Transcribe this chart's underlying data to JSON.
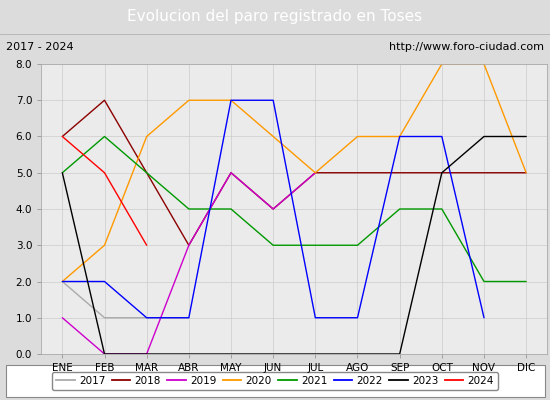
{
  "title": "Evolucion del paro registrado en Toses",
  "subtitle_left": "2017 - 2024",
  "subtitle_right": "http://www.foro-ciudad.com",
  "months": [
    "ENE",
    "FEB",
    "MAR",
    "ABR",
    "MAY",
    "JUN",
    "JUL",
    "AGO",
    "SEP",
    "OCT",
    "NOV",
    "DIC"
  ],
  "series": {
    "2017": [
      2,
      1,
      1,
      1,
      null,
      null,
      null,
      null,
      null,
      null,
      null,
      null
    ],
    "2018": [
      6,
      7,
      5,
      3,
      5,
      4,
      5,
      5,
      5,
      5,
      5,
      5
    ],
    "2019": [
      1,
      0,
      0,
      3,
      5,
      4,
      5,
      null,
      null,
      null,
      null,
      null
    ],
    "2020": [
      2,
      3,
      6,
      7,
      7,
      6,
      5,
      6,
      6,
      8,
      8,
      5
    ],
    "2021": [
      5,
      6,
      5,
      4,
      4,
      3,
      3,
      3,
      4,
      4,
      2,
      2
    ],
    "2022": [
      2,
      2,
      1,
      1,
      7,
      7,
      1,
      1,
      6,
      6,
      1,
      null
    ],
    "2023": [
      5,
      0,
      0,
      0,
      0,
      0,
      0,
      0,
      0,
      5,
      6,
      6
    ],
    "2024": [
      6,
      5,
      3,
      null,
      null,
      null,
      null,
      null,
      null,
      null,
      null,
      null
    ]
  },
  "colors": {
    "2017": "#aaaaaa",
    "2018": "#8b0000",
    "2019": "#cc00cc",
    "2020": "#ff9900",
    "2021": "#009900",
    "2022": "#0000ff",
    "2023": "#000000",
    "2024": "#ff0000"
  },
  "ylim": [
    0.0,
    8.0
  ],
  "yticks": [
    0.0,
    1.0,
    2.0,
    3.0,
    4.0,
    5.0,
    6.0,
    7.0,
    8.0
  ],
  "title_bg_color": "#4472c4",
  "title_font_color": "#ffffff",
  "subtitle_bg_color": "#dcdcdc",
  "axes_bg_color": "#ebebeb",
  "grid_color": "#cccccc",
  "title_fontsize": 11,
  "subtitle_fontsize": 8,
  "tick_fontsize": 7.5,
  "legend_fontsize": 7.5
}
